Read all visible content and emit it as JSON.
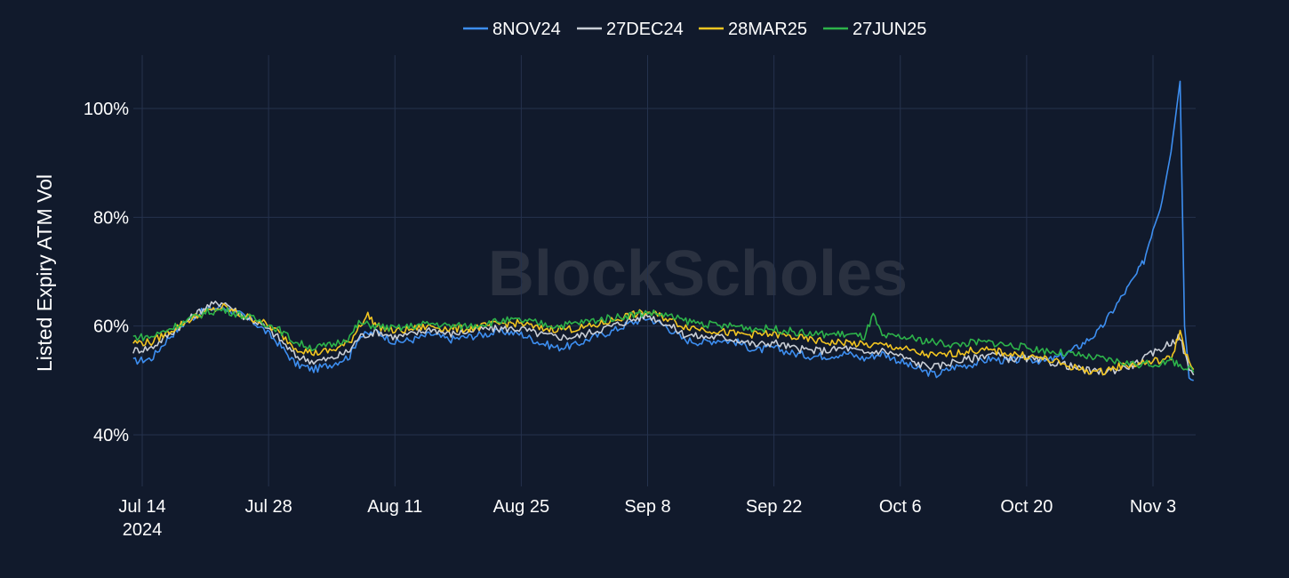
{
  "chart_data": {
    "type": "line",
    "title": "",
    "xlabel": "",
    "ylabel": "Listed Expiry ATM Vol",
    "y_tick_labels": [
      "40%",
      "60%",
      "80%",
      "100%"
    ],
    "y_ticks": [
      40,
      60,
      80,
      100
    ],
    "ylim": [
      30,
      110
    ],
    "x_range": [
      "2024-07-14",
      "2024-11-07"
    ],
    "x_ticks": [
      {
        "date": "2024-07-14",
        "label": "Jul 14",
        "sublabel": "2024"
      },
      {
        "date": "2024-07-28",
        "label": "Jul 28"
      },
      {
        "date": "2024-08-11",
        "label": "Aug 11"
      },
      {
        "date": "2024-08-25",
        "label": "Aug 25"
      },
      {
        "date": "2024-09-08",
        "label": "Sep 8"
      },
      {
        "date": "2024-09-22",
        "label": "Sep 22"
      },
      {
        "date": "2024-10-06",
        "label": "Oct 6"
      },
      {
        "date": "2024-10-20",
        "label": "Oct 20"
      },
      {
        "date": "2024-11-03",
        "label": "Nov 3"
      }
    ],
    "grid": true,
    "legend_position": "top-center",
    "watermark": "BlockScholes",
    "series": [
      {
        "name": "8NOV24",
        "color": "#3d8ef0",
        "points": [
          [
            "2024-07-13",
            53.5
          ],
          [
            "2024-07-15",
            54
          ],
          [
            "2024-07-17",
            58
          ],
          [
            "2024-07-19",
            61
          ],
          [
            "2024-07-21",
            63
          ],
          [
            "2024-07-23",
            63.5
          ],
          [
            "2024-07-25",
            62
          ],
          [
            "2024-07-27",
            60
          ],
          [
            "2024-07-29",
            57
          ],
          [
            "2024-07-31",
            53
          ],
          [
            "2024-08-02",
            52
          ],
          [
            "2024-08-04",
            53
          ],
          [
            "2024-08-06",
            54.5
          ],
          [
            "2024-08-07",
            58
          ],
          [
            "2024-08-09",
            59
          ],
          [
            "2024-08-11",
            57
          ],
          [
            "2024-08-13",
            57.5
          ],
          [
            "2024-08-15",
            58.5
          ],
          [
            "2024-08-17",
            57.5
          ],
          [
            "2024-08-19",
            58
          ],
          [
            "2024-08-21",
            58.5
          ],
          [
            "2024-08-23",
            59
          ],
          [
            "2024-08-25",
            58.5
          ],
          [
            "2024-08-27",
            57
          ],
          [
            "2024-08-29",
            56
          ],
          [
            "2024-08-31",
            56.5
          ],
          [
            "2024-09-02",
            58
          ],
          [
            "2024-09-04",
            59
          ],
          [
            "2024-09-06",
            60.5
          ],
          [
            "2024-09-08",
            61.5
          ],
          [
            "2024-09-10",
            60
          ],
          [
            "2024-09-12",
            57.5
          ],
          [
            "2024-09-14",
            57
          ],
          [
            "2024-09-16",
            57.5
          ],
          [
            "2024-09-18",
            57
          ],
          [
            "2024-09-20",
            55.5
          ],
          [
            "2024-09-22",
            56
          ],
          [
            "2024-09-24",
            55
          ],
          [
            "2024-09-26",
            54.5
          ],
          [
            "2024-09-28",
            54.5
          ],
          [
            "2024-09-30",
            55
          ],
          [
            "2024-10-02",
            54
          ],
          [
            "2024-10-04",
            55
          ],
          [
            "2024-10-06",
            53.5
          ],
          [
            "2024-10-08",
            52
          ],
          [
            "2024-10-10",
            51
          ],
          [
            "2024-10-12",
            52.5
          ],
          [
            "2024-10-14",
            53
          ],
          [
            "2024-10-16",
            54
          ],
          [
            "2024-10-18",
            53.5
          ],
          [
            "2024-10-20",
            54
          ],
          [
            "2024-10-22",
            53.5
          ],
          [
            "2024-10-24",
            54.5
          ],
          [
            "2024-10-26",
            56.5
          ],
          [
            "2024-10-28",
            59
          ],
          [
            "2024-10-30",
            64
          ],
          [
            "2024-11-01",
            69
          ],
          [
            "2024-11-02",
            72
          ],
          [
            "2024-11-03",
            78
          ],
          [
            "2024-11-04",
            83
          ],
          [
            "2024-11-05",
            92
          ],
          [
            "2024-11-06",
            105
          ],
          [
            "2024-11-06.5",
            60
          ],
          [
            "2024-11-07",
            51
          ],
          [
            "2024-11-07.5",
            50
          ]
        ]
      },
      {
        "name": "27DEC24",
        "color": "#c9ced6",
        "points": [
          [
            "2024-07-13",
            55.5
          ],
          [
            "2024-07-15",
            56
          ],
          [
            "2024-07-17",
            58.5
          ],
          [
            "2024-07-19",
            61
          ],
          [
            "2024-07-21",
            63.5
          ],
          [
            "2024-07-23",
            64.5
          ],
          [
            "2024-07-25",
            62
          ],
          [
            "2024-07-27",
            60.5
          ],
          [
            "2024-07-29",
            58
          ],
          [
            "2024-07-31",
            54.5
          ],
          [
            "2024-08-02",
            53.5
          ],
          [
            "2024-08-04",
            54
          ],
          [
            "2024-08-06",
            55.5
          ],
          [
            "2024-08-07",
            58
          ],
          [
            "2024-08-09",
            59
          ],
          [
            "2024-08-11",
            58
          ],
          [
            "2024-08-13",
            58.5
          ],
          [
            "2024-08-15",
            59.5
          ],
          [
            "2024-08-17",
            58.5
          ],
          [
            "2024-08-19",
            59
          ],
          [
            "2024-08-21",
            59.5
          ],
          [
            "2024-08-23",
            59.5
          ],
          [
            "2024-08-25",
            59.5
          ],
          [
            "2024-08-27",
            58.5
          ],
          [
            "2024-08-29",
            58
          ],
          [
            "2024-08-31",
            58
          ],
          [
            "2024-09-02",
            59
          ],
          [
            "2024-09-04",
            60
          ],
          [
            "2024-09-06",
            61
          ],
          [
            "2024-09-08",
            62
          ],
          [
            "2024-09-10",
            60.5
          ],
          [
            "2024-09-12",
            58.5
          ],
          [
            "2024-09-14",
            58
          ],
          [
            "2024-09-16",
            58
          ],
          [
            "2024-09-18",
            57.5
          ],
          [
            "2024-09-20",
            56.5
          ],
          [
            "2024-09-22",
            57
          ],
          [
            "2024-09-24",
            56
          ],
          [
            "2024-09-26",
            55.5
          ],
          [
            "2024-09-28",
            55.5
          ],
          [
            "2024-09-30",
            56
          ],
          [
            "2024-10-02",
            55
          ],
          [
            "2024-10-04",
            55.5
          ],
          [
            "2024-10-06",
            54.5
          ],
          [
            "2024-10-08",
            53
          ],
          [
            "2024-10-10",
            52.5
          ],
          [
            "2024-10-12",
            53.5
          ],
          [
            "2024-10-14",
            54
          ],
          [
            "2024-10-16",
            55
          ],
          [
            "2024-10-18",
            54
          ],
          [
            "2024-10-20",
            54
          ],
          [
            "2024-10-22",
            53.5
          ],
          [
            "2024-10-24",
            53
          ],
          [
            "2024-10-26",
            52
          ],
          [
            "2024-10-28",
            51.5
          ],
          [
            "2024-10-30",
            52
          ],
          [
            "2024-11-01",
            53
          ],
          [
            "2024-11-03",
            55
          ],
          [
            "2024-11-05",
            57
          ],
          [
            "2024-11-06",
            58
          ],
          [
            "2024-11-07",
            52
          ],
          [
            "2024-11-07.5",
            51
          ]
        ]
      },
      {
        "name": "28MAR25",
        "color": "#f2c521",
        "points": [
          [
            "2024-07-13",
            57
          ],
          [
            "2024-07-15",
            57
          ],
          [
            "2024-07-17",
            59
          ],
          [
            "2024-07-19",
            61
          ],
          [
            "2024-07-21",
            62.5
          ],
          [
            "2024-07-23",
            63.5
          ],
          [
            "2024-07-25",
            62
          ],
          [
            "2024-07-27",
            61
          ],
          [
            "2024-07-29",
            59
          ],
          [
            "2024-07-31",
            56
          ],
          [
            "2024-08-02",
            55
          ],
          [
            "2024-08-04",
            55.5
          ],
          [
            "2024-08-06",
            57
          ],
          [
            "2024-08-07",
            60
          ],
          [
            "2024-08-08",
            62
          ],
          [
            "2024-08-09",
            60
          ],
          [
            "2024-08-11",
            59
          ],
          [
            "2024-08-13",
            59.5
          ],
          [
            "2024-08-15",
            60
          ],
          [
            "2024-08-17",
            59.5
          ],
          [
            "2024-08-19",
            59.5
          ],
          [
            "2024-08-21",
            60
          ],
          [
            "2024-08-23",
            60.5
          ],
          [
            "2024-08-25",
            60.5
          ],
          [
            "2024-08-27",
            59.5
          ],
          [
            "2024-08-29",
            59.5
          ],
          [
            "2024-08-31",
            59.5
          ],
          [
            "2024-09-02",
            60
          ],
          [
            "2024-09-04",
            61
          ],
          [
            "2024-09-06",
            62
          ],
          [
            "2024-09-08",
            62.5
          ],
          [
            "2024-09-10",
            61.5
          ],
          [
            "2024-09-12",
            60
          ],
          [
            "2024-09-14",
            59.5
          ],
          [
            "2024-09-16",
            59
          ],
          [
            "2024-09-18",
            58.5
          ],
          [
            "2024-09-20",
            58.5
          ],
          [
            "2024-09-22",
            58.5
          ],
          [
            "2024-09-24",
            58
          ],
          [
            "2024-09-26",
            57.5
          ],
          [
            "2024-09-28",
            57
          ],
          [
            "2024-09-30",
            57
          ],
          [
            "2024-10-02",
            56.5
          ],
          [
            "2024-10-04",
            56.5
          ],
          [
            "2024-10-06",
            56
          ],
          [
            "2024-10-08",
            55
          ],
          [
            "2024-10-10",
            54.5
          ],
          [
            "2024-10-12",
            55
          ],
          [
            "2024-10-14",
            55.5
          ],
          [
            "2024-10-16",
            55.5
          ],
          [
            "2024-10-18",
            55
          ],
          [
            "2024-10-20",
            54.5
          ],
          [
            "2024-10-22",
            54
          ],
          [
            "2024-10-24",
            53
          ],
          [
            "2024-10-26",
            52
          ],
          [
            "2024-10-28",
            51.5
          ],
          [
            "2024-10-30",
            52.5
          ],
          [
            "2024-11-01",
            53
          ],
          [
            "2024-11-03",
            53.5
          ],
          [
            "2024-11-05",
            54
          ],
          [
            "2024-11-06",
            59
          ],
          [
            "2024-11-07",
            53
          ],
          [
            "2024-11-07.5",
            52
          ]
        ]
      },
      {
        "name": "27JUN25",
        "color": "#2db34a",
        "points": [
          [
            "2024-07-13",
            58
          ],
          [
            "2024-07-15",
            58
          ],
          [
            "2024-07-17",
            59.5
          ],
          [
            "2024-07-19",
            61
          ],
          [
            "2024-07-21",
            62.5
          ],
          [
            "2024-07-23",
            63
          ],
          [
            "2024-07-25",
            62
          ],
          [
            "2024-07-27",
            61
          ],
          [
            "2024-07-29",
            59.5
          ],
          [
            "2024-07-31",
            57
          ],
          [
            "2024-08-02",
            56
          ],
          [
            "2024-08-04",
            56.5
          ],
          [
            "2024-08-06",
            58
          ],
          [
            "2024-08-07",
            60.5
          ],
          [
            "2024-08-09",
            60
          ],
          [
            "2024-08-11",
            59.5
          ],
          [
            "2024-08-13",
            60
          ],
          [
            "2024-08-15",
            60.5
          ],
          [
            "2024-08-17",
            60
          ],
          [
            "2024-08-19",
            60
          ],
          [
            "2024-08-21",
            60.5
          ],
          [
            "2024-08-23",
            61
          ],
          [
            "2024-08-25",
            61
          ],
          [
            "2024-08-27",
            60.5
          ],
          [
            "2024-08-29",
            60
          ],
          [
            "2024-08-31",
            60.5
          ],
          [
            "2024-09-02",
            61
          ],
          [
            "2024-09-04",
            61.5
          ],
          [
            "2024-09-06",
            62
          ],
          [
            "2024-09-08",
            62.5
          ],
          [
            "2024-09-10",
            62
          ],
          [
            "2024-09-12",
            61
          ],
          [
            "2024-09-14",
            60.5
          ],
          [
            "2024-09-16",
            60
          ],
          [
            "2024-09-18",
            60
          ],
          [
            "2024-09-20",
            59.5
          ],
          [
            "2024-09-22",
            59.5
          ],
          [
            "2024-09-24",
            59
          ],
          [
            "2024-09-26",
            58.5
          ],
          [
            "2024-09-28",
            58.5
          ],
          [
            "2024-09-30",
            58.5
          ],
          [
            "2024-10-02",
            58
          ],
          [
            "2024-10-03",
            62
          ],
          [
            "2024-10-04",
            58
          ],
          [
            "2024-10-06",
            58
          ],
          [
            "2024-10-08",
            57.5
          ],
          [
            "2024-10-10",
            57
          ],
          [
            "2024-10-12",
            56.5
          ],
          [
            "2024-10-14",
            57
          ],
          [
            "2024-10-16",
            57
          ],
          [
            "2024-10-18",
            56.5
          ],
          [
            "2024-10-20",
            56
          ],
          [
            "2024-10-22",
            55.5
          ],
          [
            "2024-10-24",
            55
          ],
          [
            "2024-10-26",
            54.5
          ],
          [
            "2024-10-28",
            54
          ],
          [
            "2024-10-30",
            53.5
          ],
          [
            "2024-11-01",
            53
          ],
          [
            "2024-11-03",
            53
          ],
          [
            "2024-11-05",
            53.5
          ],
          [
            "2024-11-06",
            53
          ],
          [
            "2024-11-07",
            52
          ],
          [
            "2024-11-07.5",
            51.5
          ]
        ]
      }
    ]
  }
}
